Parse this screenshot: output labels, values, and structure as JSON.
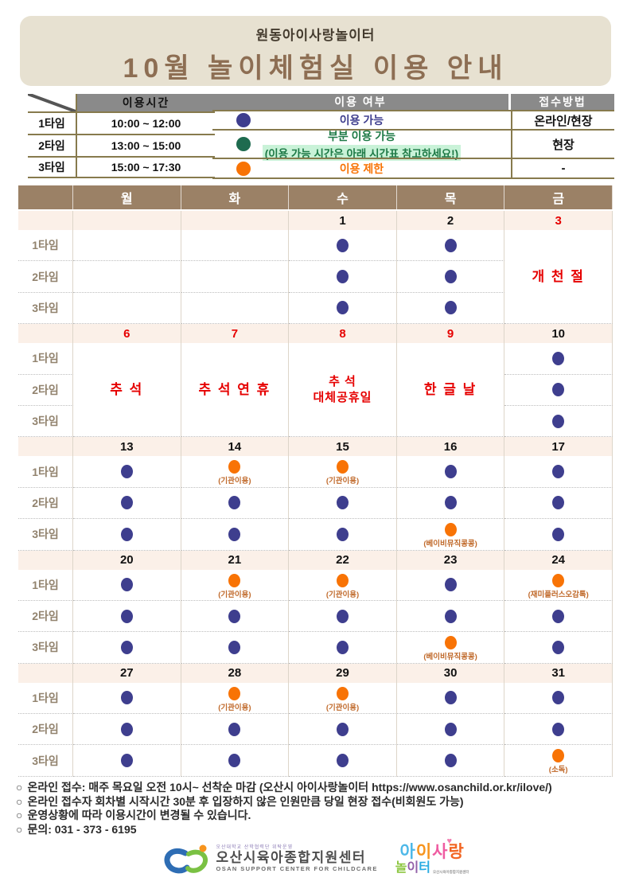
{
  "header": {
    "org": "원동아이사랑놀이터",
    "title": "10월  놀이체험실  이용  안내"
  },
  "time_table": {
    "header": "이용시간",
    "rows": [
      {
        "label": "1타임",
        "time": "10:00 ~ 12:00"
      },
      {
        "label": "2타임",
        "time": "13:00 ~ 15:00"
      },
      {
        "label": "3타임",
        "time": "15:00 ~ 17:30"
      }
    ]
  },
  "legend": {
    "availability_header": "이용 여부",
    "method_header": "접수방법",
    "rows": [
      {
        "dot": "blue",
        "label": "이용 가능",
        "method": "온라인/현장"
      },
      {
        "dot": "green",
        "label": "부분 이용 가능",
        "sub": "(이용 가능 시간은 아래 시간표 참고하세요!)",
        "method": "현장"
      },
      {
        "dot": "orange",
        "label": "이용 제한",
        "method": "-"
      }
    ]
  },
  "calendar": {
    "day_headers": [
      "월",
      "화",
      "수",
      "목",
      "금"
    ],
    "time_labels": [
      "1타임",
      "2타임",
      "3타임"
    ],
    "weeks": [
      {
        "dates": [
          {
            "d": ""
          },
          {
            "d": ""
          },
          {
            "d": "1"
          },
          {
            "d": "2"
          },
          {
            "d": "3",
            "red": true
          }
        ],
        "holidays": [
          {
            "col": 4,
            "lines": [
              "개 천 절"
            ]
          }
        ],
        "rows": [
          [
            "",
            "",
            "B",
            "B",
            ""
          ],
          [
            "",
            "",
            "B",
            "B",
            ""
          ],
          [
            "",
            "",
            "B",
            "B",
            ""
          ]
        ]
      },
      {
        "dates": [
          {
            "d": "6",
            "red": true
          },
          {
            "d": "7",
            "red": true
          },
          {
            "d": "8",
            "red": true
          },
          {
            "d": "9",
            "red": true
          },
          {
            "d": "10"
          }
        ],
        "holidays": [
          {
            "col": 0,
            "lines": [
              "추 석"
            ]
          },
          {
            "col": 1,
            "lines": [
              "추 석 연 휴"
            ]
          },
          {
            "col": 2,
            "lines": [
              "추 석",
              "대체공휴일"
            ]
          },
          {
            "col": 3,
            "lines": [
              "한 글 날"
            ]
          }
        ],
        "rows": [
          [
            "",
            "",
            "",
            "",
            "B"
          ],
          [
            "",
            "",
            "",
            "",
            "B"
          ],
          [
            "",
            "",
            "",
            "",
            "B"
          ]
        ]
      },
      {
        "dates": [
          {
            "d": "13"
          },
          {
            "d": "14"
          },
          {
            "d": "15"
          },
          {
            "d": "16"
          },
          {
            "d": "17"
          }
        ],
        "holidays": [],
        "rows": [
          [
            "B",
            {
              "o": "(기관이용)"
            },
            {
              "o": "(기관이용)"
            },
            "B",
            "B"
          ],
          [
            "B",
            "B",
            "B",
            "B",
            "B"
          ],
          [
            "B",
            "B",
            "B",
            {
              "o": "(베이비뮤직콩콩)"
            },
            "B"
          ]
        ]
      },
      {
        "dates": [
          {
            "d": "20"
          },
          {
            "d": "21"
          },
          {
            "d": "22"
          },
          {
            "d": "23"
          },
          {
            "d": "24"
          }
        ],
        "holidays": [],
        "rows": [
          [
            "B",
            {
              "o": "(기관이용)"
            },
            {
              "o": "(기관이용)"
            },
            "B",
            {
              "o": "(재미플러스오감톡)"
            }
          ],
          [
            "B",
            "B",
            "B",
            "B",
            "B"
          ],
          [
            "B",
            "B",
            "B",
            {
              "o": "(베이비뮤직콩콩)"
            },
            "B"
          ]
        ]
      },
      {
        "dates": [
          {
            "d": "27"
          },
          {
            "d": "28"
          },
          {
            "d": "29"
          },
          {
            "d": "30"
          },
          {
            "d": "31"
          }
        ],
        "holidays": [],
        "rows": [
          [
            "B",
            {
              "o": "(기관이용)"
            },
            {
              "o": "(기관이용)"
            },
            "B",
            "B"
          ],
          [
            "B",
            "B",
            "B",
            "B",
            "B"
          ],
          [
            "B",
            "B",
            "B",
            "B",
            {
              "o": "(소독)"
            }
          ]
        ]
      }
    ]
  },
  "notes": [
    "온라인 접수: 매주 목요일 오전 10시~ 선착순 마감 (오산시 아이사랑놀이터  https://www.osanchild.or.kr/ilove/)",
    "온라인 접수자 회차별 시작시간 30분 후 입장하지 않은 인원만큼 당일 현장 접수(비회원도 가능)",
    "운영상황에 따라 이용시간이 변경될 수 있습니다.",
    "문의: 031 - 373 - 6195"
  ],
  "logos": {
    "left": {
      "top": "오산대학교 산학협력단 위탁운영",
      "name": "오산시육아종합지원센터",
      "eng": "OSAN SUPPORT CENTER FOR CHILDCARE"
    },
    "right": {
      "heart": "♥",
      "sub": "오산시육아종합지원센터",
      "chars1": [
        {
          "c": "아",
          "color": "#4db8e8"
        },
        {
          "c": "이",
          "color": "#f7941d"
        },
        {
          "c": "사",
          "color": "#ef5ba1"
        },
        {
          "c": "랑",
          "color": "#f26522"
        }
      ],
      "chars2": [
        {
          "c": "놀",
          "color": "#8cc63f"
        },
        {
          "c": "이",
          "color": "#9260a8"
        },
        {
          "c": "터",
          "color": "#29abe2"
        }
      ]
    }
  },
  "colors": {
    "header_bg": "#e7e1d1",
    "title_brown": "#8d6e53",
    "calendar_header_brown": "#9b8166",
    "date_row_bg": "#fbf0e8",
    "available_blue": "#3e3e8e",
    "partial_green": "#1e6b4f",
    "restricted_orange": "#f87305",
    "holiday_red": "#e60000",
    "legend_gray": "#8a8a8a",
    "olive_border": "#877a4d",
    "highlight_green_bg": "#c9f2d8"
  }
}
